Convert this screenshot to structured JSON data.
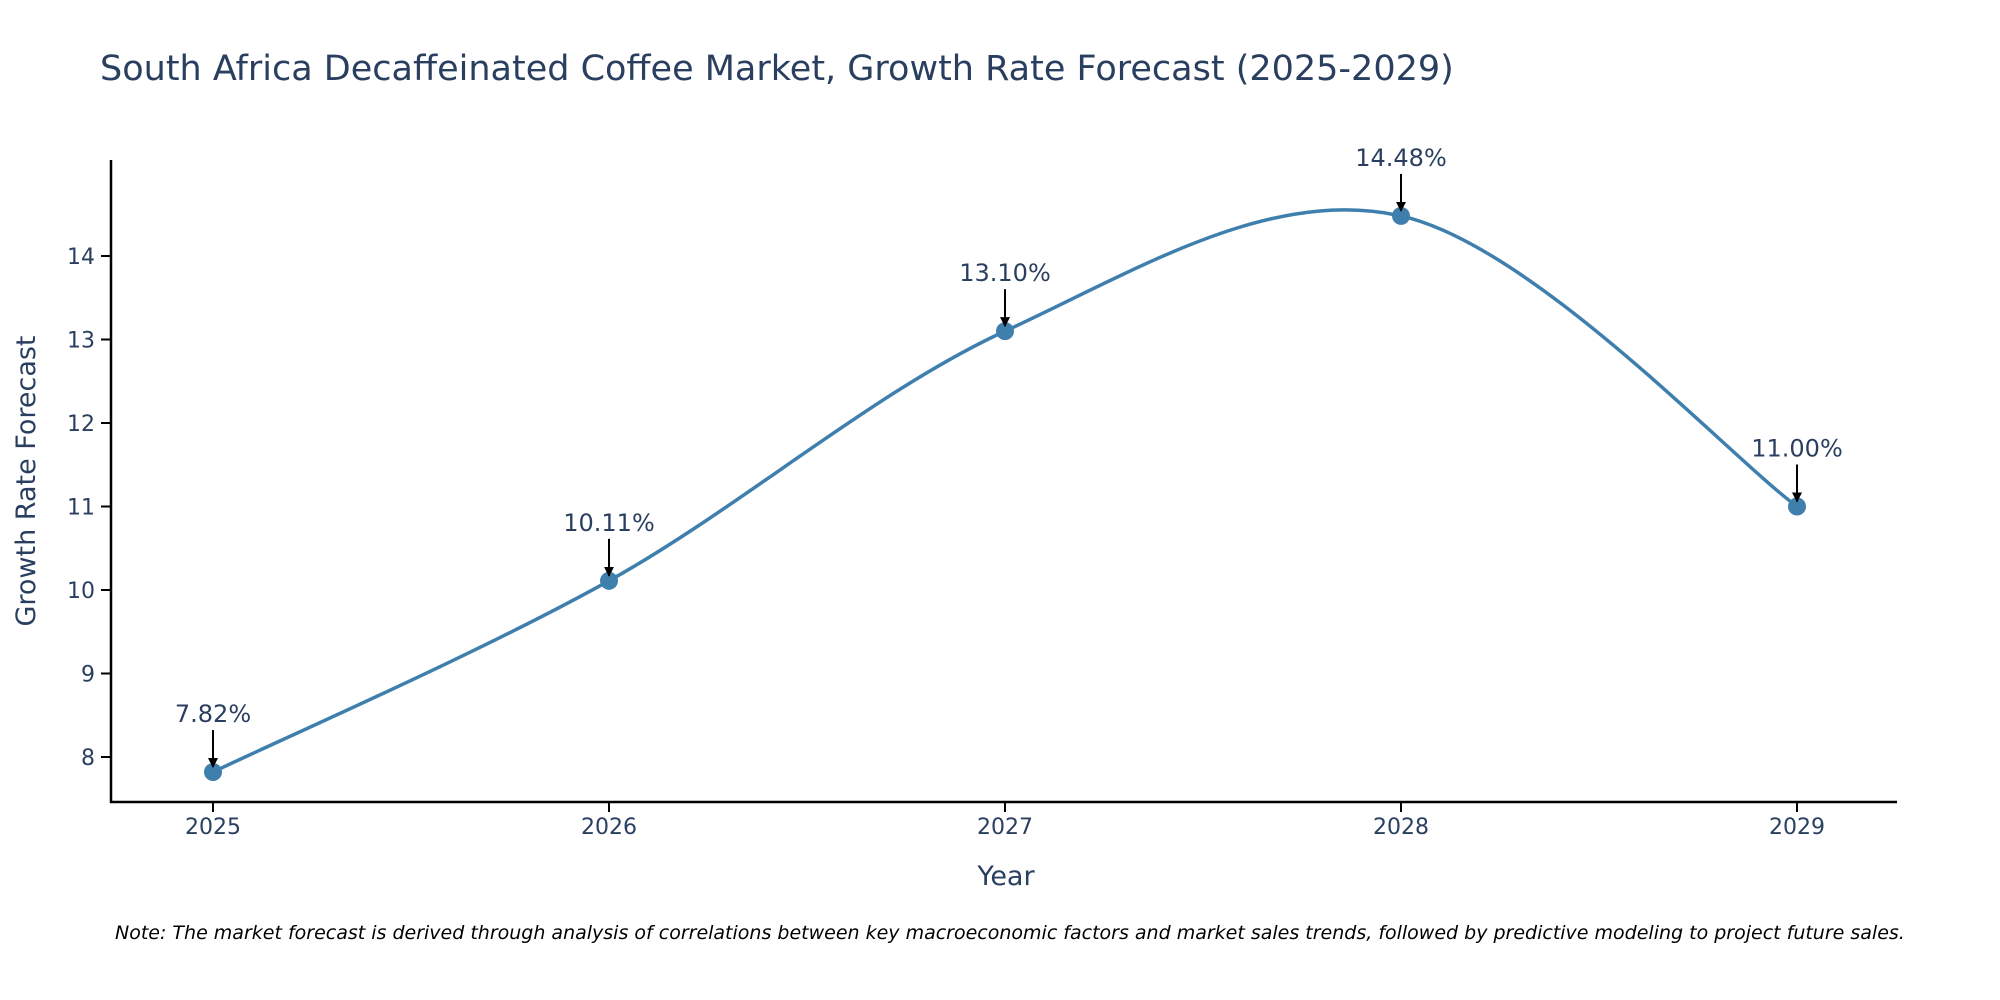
{
  "chart_data": {
    "type": "line",
    "title": "South Africa Decaffeinated Coffee Market, Growth Rate Forecast (2025-2029)",
    "xlabel": "Year",
    "ylabel": "Growth Rate Forecast",
    "categories": [
      "2025",
      "2026",
      "2027",
      "2028",
      "2029"
    ],
    "series": [
      {
        "name": "Growth Rate Forecast",
        "values": [
          7.82,
          10.11,
          13.1,
          14.48,
          11.0
        ],
        "labels": [
          "7.82%",
          "10.11%",
          "13.10%",
          "14.48%",
          "11.00%"
        ],
        "color": "#3f7fad",
        "line_shape": "spline"
      }
    ],
    "ylim": [
      7.3,
      15.0
    ],
    "yticks": [
      8,
      9,
      10,
      11,
      12,
      13,
      14
    ],
    "ytick_labels": [
      "8",
      "9",
      "10",
      "11",
      "12",
      "13",
      "14"
    ],
    "grid": false,
    "legend": "none",
    "annotation_arrow_color": "#000000",
    "axis_color": "#000000",
    "text_color": "#2a3f5f"
  },
  "note": "Note: The market forecast is derived through analysis of correlations between key macroeconomic factors and market sales trends, followed by predictive modeling to project future sales."
}
